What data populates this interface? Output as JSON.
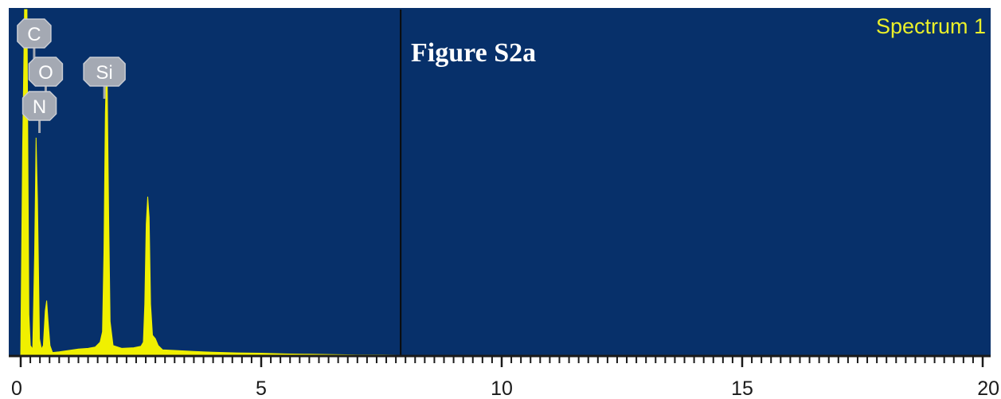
{
  "figure_label": "Figure S2a",
  "chart_data": {
    "type": "area",
    "x_ticks": [
      "0",
      "5",
      "10",
      "15",
      "20"
    ],
    "xlim": [
      0,
      20
    ],
    "ylim": [
      0,
      1
    ],
    "grid": false,
    "legend": "top-right",
    "series": [
      {
        "name": "Spectrum 1",
        "color": "#f0f000",
        "points": [
          [
            0.0,
            0.0
          ],
          [
            0.04,
            0.6
          ],
          [
            0.08,
            1.0
          ],
          [
            0.13,
            1.0
          ],
          [
            0.17,
            0.12
          ],
          [
            0.2,
            0.03
          ],
          [
            0.25,
            0.02
          ],
          [
            0.29,
            0.3
          ],
          [
            0.32,
            0.63
          ],
          [
            0.35,
            0.45
          ],
          [
            0.39,
            0.05
          ],
          [
            0.43,
            0.02
          ],
          [
            0.47,
            0.03
          ],
          [
            0.51,
            0.13
          ],
          [
            0.54,
            0.16
          ],
          [
            0.57,
            0.1
          ],
          [
            0.61,
            0.03
          ],
          [
            0.66,
            0.01
          ],
          [
            0.8,
            0.012
          ],
          [
            1.0,
            0.016
          ],
          [
            1.2,
            0.02
          ],
          [
            1.4,
            0.022
          ],
          [
            1.55,
            0.026
          ],
          [
            1.65,
            0.04
          ],
          [
            1.7,
            0.07
          ],
          [
            1.73,
            0.3
          ],
          [
            1.76,
            0.7
          ],
          [
            1.78,
            0.82
          ],
          [
            1.8,
            0.78
          ],
          [
            1.83,
            0.4
          ],
          [
            1.86,
            0.1
          ],
          [
            1.92,
            0.03
          ],
          [
            2.1,
            0.022
          ],
          [
            2.35,
            0.024
          ],
          [
            2.5,
            0.028
          ],
          [
            2.55,
            0.04
          ],
          [
            2.58,
            0.15
          ],
          [
            2.61,
            0.38
          ],
          [
            2.64,
            0.46
          ],
          [
            2.67,
            0.4
          ],
          [
            2.7,
            0.15
          ],
          [
            2.74,
            0.06
          ],
          [
            2.8,
            0.05
          ],
          [
            2.86,
            0.03
          ],
          [
            2.95,
            0.018
          ],
          [
            3.2,
            0.016
          ],
          [
            3.6,
            0.013
          ],
          [
            4.0,
            0.011
          ],
          [
            4.5,
            0.009
          ],
          [
            5.0,
            0.008
          ],
          [
            5.5,
            0.006
          ],
          [
            6.0,
            0.005
          ],
          [
            6.5,
            0.004
          ],
          [
            7.0,
            0.003
          ],
          [
            7.5,
            0.003
          ],
          [
            8.0,
            0.002
          ],
          [
            8.7,
            0.001
          ],
          [
            9.0,
            0.0
          ]
        ]
      }
    ],
    "annotations": [
      {
        "text": "C",
        "x": 0.28,
        "row": 1
      },
      {
        "text": "O",
        "x": 0.52,
        "row": 2
      },
      {
        "text": "N",
        "x": 0.39,
        "row": 3
      },
      {
        "text": "Si",
        "x": 1.74,
        "row": 2
      }
    ],
    "marker_x": 7.9
  },
  "colors": {
    "plot_background": "#07306a",
    "spectrum": "#f0f000",
    "legend_text": "#e9ef2a",
    "element_badge": "#a4a9b3",
    "axis": "#1a1a1a"
  }
}
